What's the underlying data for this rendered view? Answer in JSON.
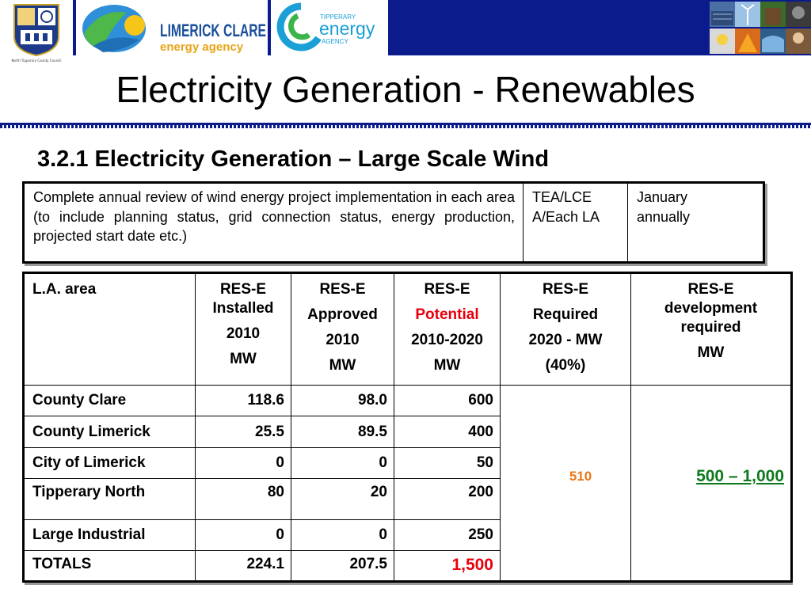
{
  "header": {
    "lce_logo_line1": "LIMERICK CLARE",
    "lce_logo_line2": "energy agency",
    "tea_logo_line1": "TIPPERARY",
    "tea_logo_line2": "energy",
    "tea_logo_line3": "AGENCY",
    "crest_caption": "North Tipperary County Council",
    "photos_icon": "renewable-energy-photos"
  },
  "colors": {
    "navy": "#0b1b8c",
    "potential_red": "#e8000d",
    "required_orange": "#e87817",
    "development_green": "#0e7a1c"
  },
  "slide": {
    "title": "Electricity Generation - Renewables",
    "subtitle": "3.2.1 Electricity Generation – Large Scale Wind"
  },
  "review": {
    "description": "Complete annual review of wind energy project implementation in each area (to include planning status, grid connection status, energy production, projected start date etc.)",
    "responsible_line1": "TEA/LCE",
    "responsible_line2": "A/Each LA",
    "timing_line1": "January",
    "timing_line2": "annually"
  },
  "table": {
    "headers": {
      "la_area": "L.A. area",
      "installed": [
        "RES-E",
        "Installed",
        "2010",
        "MW"
      ],
      "approved": [
        "RES-E",
        "Approved",
        "2010",
        "MW"
      ],
      "potential": [
        "RES-E",
        "Potential",
        "2010-2020",
        "MW"
      ],
      "required": [
        "RES-E",
        "Required",
        "2020 - MW",
        "(40%)"
      ],
      "development": [
        "RES-E",
        "development",
        "required",
        "MW"
      ]
    },
    "rows": [
      {
        "area": "County Clare",
        "installed": "118.6",
        "approved": "98.0",
        "potential": "600"
      },
      {
        "area": "County Limerick",
        "installed": "25.5",
        "approved": "89.5",
        "potential": "400"
      },
      {
        "area": "City of Limerick",
        "installed": "0",
        "approved": "0",
        "potential": "50"
      },
      {
        "area": "Tipperary North",
        "installed": "80",
        "approved": "20",
        "potential": "200"
      },
      {
        "area": "Large Industrial",
        "installed": "0",
        "approved": "0",
        "potential": "250"
      },
      {
        "area": "TOTALS",
        "installed": "224.1",
        "approved": "207.5",
        "potential": "1,500"
      }
    ],
    "required_value": "510",
    "development_value": "500 – 1,000"
  }
}
